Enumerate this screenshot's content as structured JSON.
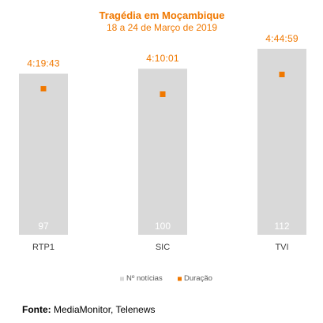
{
  "chart_data": {
    "type": "bar",
    "title": "Tragédia em Moçambique",
    "subtitle": "18 a 24 de Março de 2019",
    "categories": [
      "RTP1",
      "SIC",
      "TVI"
    ],
    "series": [
      {
        "name": "Nº notícias",
        "type": "bar",
        "values": [
          97,
          100,
          112
        ],
        "color": "#D9D9D9"
      },
      {
        "name": "Duração",
        "type": "scatter",
        "values": [
          "4:19:43",
          "4:10:01",
          "4:44:59"
        ],
        "values_seconds": [
          15583,
          15001,
          17099
        ],
        "color": "#F07800"
      }
    ],
    "ylim_bars": [
      0,
      130
    ],
    "ylim_duration_seconds": [
      0,
      20000
    ],
    "legend_position": "bottom",
    "grid": false
  },
  "source": {
    "label": "Fonte:",
    "text": " MediaMonitor, Telenews"
  }
}
